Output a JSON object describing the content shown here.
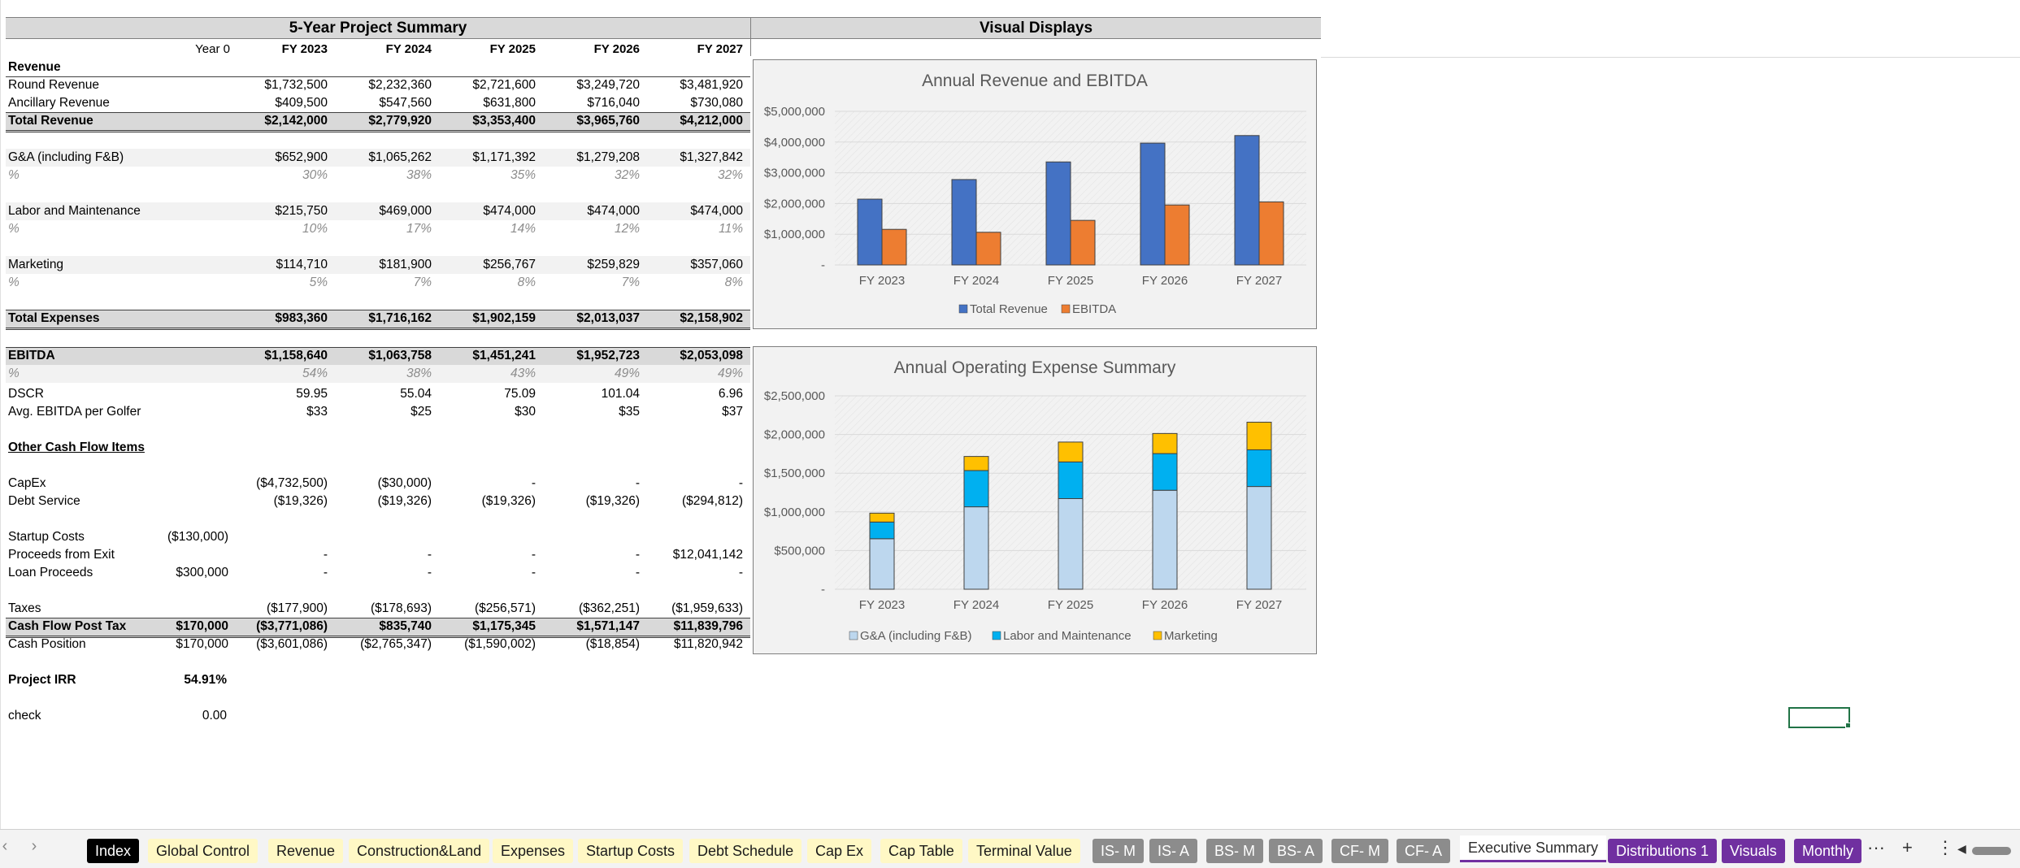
{
  "headers": {
    "summary": "5-Year Project Summary",
    "visuals": "Visual Displays"
  },
  "columns": [
    "Year 0",
    "FY 2023",
    "FY 2024",
    "FY 2025",
    "FY 2026",
    "FY 2027"
  ],
  "table": {
    "revenue": "Revenue",
    "round_revenue": {
      "label": "Round Revenue",
      "v": [
        "",
        "$1,732,500",
        "$2,232,360",
        "$2,721,600",
        "$3,249,720",
        "$3,481,920"
      ]
    },
    "ancillary_revenue": {
      "label": "Ancillary Revenue",
      "v": [
        "",
        "$409,500",
        "$547,560",
        "$631,800",
        "$716,040",
        "$730,080"
      ]
    },
    "total_revenue": {
      "label": "Total Revenue",
      "v": [
        "",
        "$2,142,000",
        "$2,779,920",
        "$3,353,400",
        "$3,965,760",
        "$4,212,000"
      ]
    },
    "ga": {
      "label": "G&A (including F&B)",
      "v": [
        "",
        "$652,900",
        "$1,065,262",
        "$1,171,392",
        "$1,279,208",
        "$1,327,842"
      ]
    },
    "ga_pct": {
      "label": "%",
      "v": [
        "",
        "30%",
        "38%",
        "35%",
        "32%",
        "32%"
      ]
    },
    "labor": {
      "label": "Labor and Maintenance",
      "v": [
        "",
        "$215,750",
        "$469,000",
        "$474,000",
        "$474,000",
        "$474,000"
      ]
    },
    "labor_pct": {
      "label": "%",
      "v": [
        "",
        "10%",
        "17%",
        "14%",
        "12%",
        "11%"
      ]
    },
    "marketing": {
      "label": "Marketing",
      "v": [
        "",
        "$114,710",
        "$181,900",
        "$256,767",
        "$259,829",
        "$357,060"
      ]
    },
    "marketing_pct": {
      "label": "%",
      "v": [
        "",
        "5%",
        "7%",
        "8%",
        "7%",
        "8%"
      ]
    },
    "total_expenses": {
      "label": "Total Expenses",
      "v": [
        "",
        "$983,360",
        "$1,716,162",
        "$1,902,159",
        "$2,013,037",
        "$2,158,902"
      ]
    },
    "ebitda": {
      "label": "EBITDA",
      "v": [
        "",
        "$1,158,640",
        "$1,063,758",
        "$1,451,241",
        "$1,952,723",
        "$2,053,098"
      ]
    },
    "ebitda_pct": {
      "label": "%",
      "v": [
        "",
        "54%",
        "38%",
        "43%",
        "49%",
        "49%"
      ]
    },
    "dscr": {
      "label": "DSCR",
      "v": [
        "",
        "59.95",
        "55.04",
        "75.09",
        "101.04",
        "6.96"
      ]
    },
    "avg_ebitda": {
      "label": "Avg. EBITDA per Golfer",
      "v": [
        "",
        "$33",
        "$25",
        "$30",
        "$35",
        "$37"
      ]
    },
    "other_cf": "Other Cash Flow Items",
    "capex": {
      "label": "CapEx",
      "v": [
        "",
        "($4,732,500)",
        "($30,000)",
        "-",
        "-",
        "-"
      ]
    },
    "debt_service": {
      "label": "Debt Service",
      "v": [
        "",
        "($19,326)",
        "($19,326)",
        "($19,326)",
        "($19,326)",
        "($294,812)"
      ]
    },
    "startup_costs": {
      "label": "Startup Costs",
      "v": [
        "($130,000)",
        "",
        "",
        "",
        "",
        ""
      ]
    },
    "proceeds_exit": {
      "label": "Proceeds from Exit",
      "v": [
        "",
        "-",
        "-",
        "-",
        "-",
        "$12,041,142"
      ]
    },
    "loan_proceeds": {
      "label": "Loan Proceeds",
      "v": [
        "$300,000",
        "-",
        "-",
        "-",
        "-",
        "-"
      ]
    },
    "taxes": {
      "label": "Taxes",
      "v": [
        "",
        "($177,900)",
        "($178,693)",
        "($256,571)",
        "($362,251)",
        "($1,959,633)"
      ]
    },
    "cf_post_tax": {
      "label": "Cash Flow Post Tax",
      "v": [
        "$170,000",
        "($3,771,086)",
        "$835,740",
        "$1,175,345",
        "$1,571,147",
        "$11,839,796"
      ]
    },
    "cash_position": {
      "label": "Cash Position",
      "v": [
        "$170,000",
        "($3,601,086)",
        "($2,765,347)",
        "($1,590,002)",
        "($18,854)",
        "$11,820,942"
      ]
    },
    "irr": {
      "label": "Project IRR",
      "v": "54.91%"
    },
    "check": {
      "label": "check",
      "v": "0.00"
    }
  },
  "chart_data": [
    {
      "type": "bar",
      "title": "Annual Revenue and EBITDA",
      "categories": [
        "FY 2023",
        "FY 2024",
        "FY 2025",
        "FY 2026",
        "FY 2027"
      ],
      "series": [
        {
          "name": "Total Revenue",
          "values": [
            2142000,
            2779920,
            3353400,
            3965760,
            4212000
          ],
          "color": "#4472c4"
        },
        {
          "name": "EBITDA",
          "values": [
            1158640,
            1063758,
            1451241,
            1952723,
            2053098
          ],
          "color": "#ed7d31"
        }
      ],
      "ylim": [
        0,
        5000000
      ],
      "yticks": [
        "-",
        "$1,000,000",
        "$2,000,000",
        "$3,000,000",
        "$4,000,000",
        "$5,000,000"
      ],
      "legend": "bottom"
    },
    {
      "type": "bar",
      "stacked": true,
      "title": "Annual Operating Expense Summary",
      "categories": [
        "FY 2023",
        "FY 2024",
        "FY 2025",
        "FY 2026",
        "FY 2027"
      ],
      "series": [
        {
          "name": "G&A (including F&B)",
          "values": [
            652900,
            1065262,
            1171392,
            1279208,
            1327842
          ],
          "color": "#bdd7ee"
        },
        {
          "name": "Labor and Maintenance",
          "values": [
            215750,
            469000,
            474000,
            474000,
            474000
          ],
          "color": "#00b0f0"
        },
        {
          "name": "Marketing",
          "values": [
            114710,
            181900,
            256767,
            259829,
            357060
          ],
          "color": "#ffc000"
        }
      ],
      "ylim": [
        0,
        2500000
      ],
      "yticks": [
        "-",
        "$500,000",
        "$1,000,000",
        "$1,500,000",
        "$2,000,000",
        "$2,500,000"
      ],
      "legend": "bottom"
    }
  ],
  "tabs": [
    {
      "label": "Index",
      "style": "black"
    },
    {
      "label": "Global Control",
      "style": "yellow"
    },
    {
      "label": "Revenue",
      "style": "yellow"
    },
    {
      "label": "Construction&Land",
      "style": "yellow"
    },
    {
      "label": "Expenses",
      "style": "yellow"
    },
    {
      "label": "Startup Costs",
      "style": "yellow"
    },
    {
      "label": "Debt Schedule",
      "style": "yellow"
    },
    {
      "label": "Cap Ex",
      "style": "yellow"
    },
    {
      "label": "Cap Table",
      "style": "yellow"
    },
    {
      "label": "Terminal Value",
      "style": "yellow"
    },
    {
      "label": "IS- M",
      "style": "gray"
    },
    {
      "label": "IS- A",
      "style": "gray"
    },
    {
      "label": "BS- M",
      "style": "gray"
    },
    {
      "label": "BS- A",
      "style": "gray"
    },
    {
      "label": "CF- M",
      "style": "gray"
    },
    {
      "label": "CF- A",
      "style": "gray"
    },
    {
      "label": "Executive Summary",
      "style": "active"
    },
    {
      "label": "Distributions 1",
      "style": "purple"
    },
    {
      "label": "Visuals",
      "style": "purple"
    },
    {
      "label": "Monthly",
      "style": "purple"
    }
  ],
  "tab_nav": {
    "prev": "‹",
    "next": "›",
    "more": "···",
    "add": "+",
    "options": "⋮",
    "scroll_left": "◀"
  }
}
